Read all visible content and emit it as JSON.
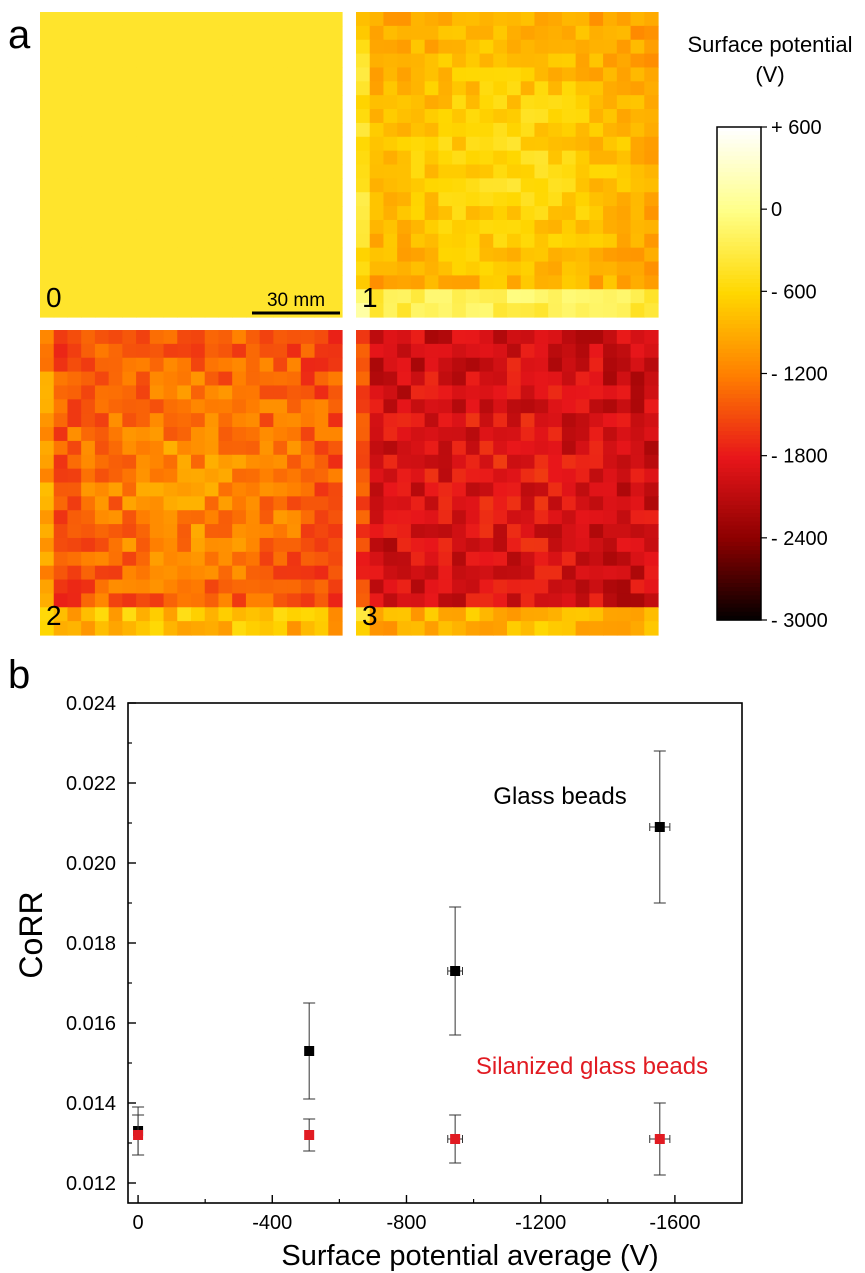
{
  "panel_labels": {
    "a": "a",
    "b": "b"
  },
  "chart_data": [
    {
      "type": "heatmap",
      "panels": [
        {
          "label": "0",
          "scale_bar": "30 mm"
        },
        {
          "label": "1"
        },
        {
          "label": "2"
        },
        {
          "label": "3"
        }
      ],
      "colorbar": {
        "title_line1": "Surface potential",
        "title_line2": "(V)",
        "tick_labels": [
          "+ 600",
          "0",
          "- 600",
          "- 1200",
          "- 1800",
          "- 2400",
          "- 3000"
        ],
        "tick_values": [
          600,
          0,
          -600,
          -1200,
          -1800,
          -2400,
          -3000
        ],
        "range": [
          -3000,
          600
        ],
        "colormap": [
          "#000000",
          "#8b0000",
          "#e8161a",
          "#ff7f00",
          "#ffd700",
          "#ffff88",
          "#ffffff"
        ]
      }
    },
    {
      "type": "scatter",
      "xlabel": "Surface potential average (V)",
      "ylabel": "CoRR",
      "xlim": [
        30,
        -1800
      ],
      "ylim": [
        0.0115,
        0.024
      ],
      "x_ticks": [
        0,
        -400,
        -800,
        -1200,
        -1600
      ],
      "x_tick_labels": [
        "0",
        "-400",
        "-800",
        "-1200",
        "-1600"
      ],
      "y_ticks": [
        0.012,
        0.014,
        0.016,
        0.018,
        0.02,
        0.022,
        0.024
      ],
      "y_tick_labels": [
        "0.012",
        "0.014",
        "0.016",
        "0.018",
        "0.020",
        "0.022",
        "0.024"
      ],
      "series": [
        {
          "name": "Glass beads",
          "color": "#000000",
          "points": [
            {
              "x": 0,
              "y": 0.0133,
              "yerr": 0.0006,
              "xerr": 10
            },
            {
              "x": -510,
              "y": 0.0153,
              "yerr": 0.0012,
              "xerr": 12
            },
            {
              "x": -945,
              "y": 0.0173,
              "yerr": 0.0016,
              "xerr": 22
            },
            {
              "x": -1555,
              "y": 0.0209,
              "yerr": 0.0019,
              "xerr": 30
            }
          ]
        },
        {
          "name": "Silanized glass beads",
          "color": "#e11b22",
          "points": [
            {
              "x": 0,
              "y": 0.0132,
              "yerr": 0.0005,
              "xerr": 10
            },
            {
              "x": -510,
              "y": 0.0132,
              "yerr": 0.0004,
              "xerr": 12
            },
            {
              "x": -945,
              "y": 0.0131,
              "yerr": 0.0006,
              "xerr": 22
            },
            {
              "x": -1555,
              "y": 0.0131,
              "yerr": 0.0009,
              "xerr": 30
            }
          ]
        }
      ]
    }
  ]
}
